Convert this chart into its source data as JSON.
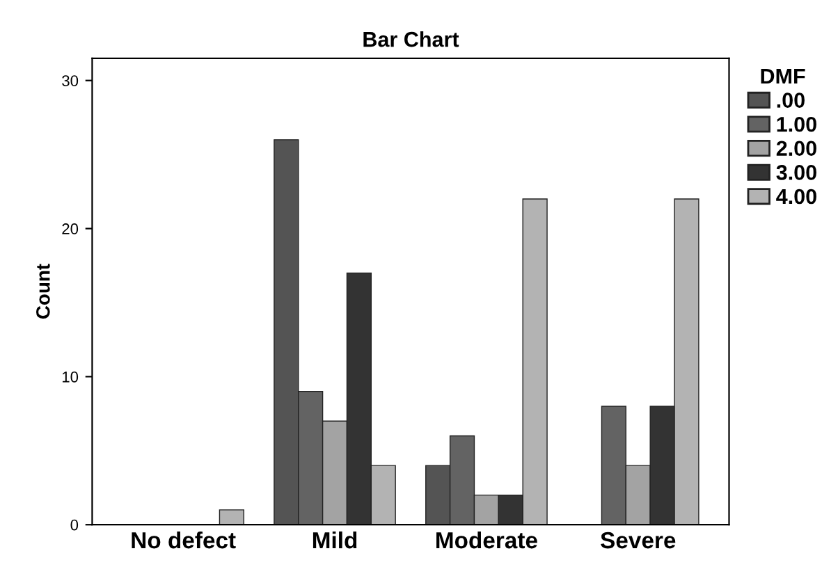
{
  "chart_data": {
    "type": "bar",
    "title": "Bar Chart",
    "ylabel": "Count",
    "legend_title": "DMF",
    "categories": [
      "No defect",
      "Mild",
      "Moderate",
      "Severe"
    ],
    "series": [
      {
        "name": ".00",
        "color": "#545454",
        "values": [
          0,
          26,
          4,
          0
        ]
      },
      {
        "name": "1.00",
        "color": "#636363",
        "values": [
          0,
          9,
          6,
          8
        ]
      },
      {
        "name": "2.00",
        "color": "#a3a3a3",
        "values": [
          0,
          7,
          2,
          4
        ]
      },
      {
        "name": "3.00",
        "color": "#333333",
        "values": [
          0,
          17,
          2,
          8
        ]
      },
      {
        "name": "4.00",
        "color": "#b3b3b3",
        "values": [
          1,
          4,
          22,
          22
        ]
      }
    ],
    "ylim": [
      0,
      31.5
    ],
    "yticks": [
      0,
      10,
      20,
      30
    ],
    "grid": false,
    "legend": "right"
  }
}
